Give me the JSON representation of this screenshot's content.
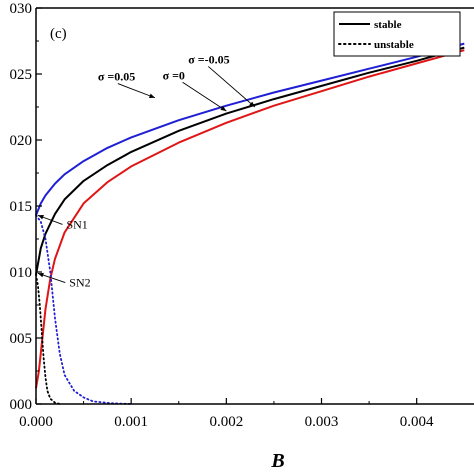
{
  "chart_data": {
    "type": "line",
    "panel_label": "(c)",
    "xlabel": "B",
    "ylabel": "",
    "xlim": [
      0,
      0.0045
    ],
    "ylim": [
      0,
      0.03
    ],
    "x_ticks": [
      0,
      0.001,
      0.002,
      0.003,
      0.004
    ],
    "x_tick_labels": [
      "0.000",
      "0.001",
      "0.002",
      "0.003",
      "0.004"
    ],
    "y_ticks": [
      0,
      0.005,
      0.01,
      0.015,
      0.02,
      0.025,
      0.03
    ],
    "y_tick_labels": [
      "000",
      "005",
      "010",
      "015",
      "020",
      "025",
      "030"
    ],
    "grid": false,
    "legend": {
      "position": "top-right",
      "entries": [
        {
          "label": "stable",
          "style": "solid"
        },
        {
          "label": "unstable",
          "style": "dotted"
        }
      ]
    },
    "series": [
      {
        "color": "#1f1fd6",
        "style": "solid",
        "x": [
          0,
          5e-05,
          0.0001,
          0.0002,
          0.0003,
          0.0005,
          0.00075,
          0.001,
          0.0015,
          0.002,
          0.0025,
          0.003,
          0.0035,
          0.004,
          0.0045
        ],
        "y": [
          0.0143,
          0.0152,
          0.0158,
          0.0167,
          0.0174,
          0.0184,
          0.0194,
          0.0202,
          0.0215,
          0.0226,
          0.0236,
          0.0245,
          0.0254,
          0.0263,
          0.0273
        ]
      },
      {
        "color": "#000000",
        "style": "solid",
        "x": [
          0,
          5e-05,
          0.0001,
          0.0002,
          0.0003,
          0.0005,
          0.00075,
          0.001,
          0.0015,
          0.002,
          0.0025,
          0.003,
          0.0035,
          0.004,
          0.0045
        ],
        "y": [
          0.0098,
          0.0118,
          0.0129,
          0.0144,
          0.0155,
          0.0169,
          0.0181,
          0.0191,
          0.0207,
          0.022,
          0.0231,
          0.0241,
          0.0251,
          0.026,
          0.027
        ]
      },
      {
        "color": "#e01515",
        "style": "solid",
        "x": [
          0,
          3e-05,
          6e-05,
          0.0001,
          0.00015,
          0.0002,
          0.0003,
          0.0005,
          0.00075,
          0.001,
          0.0015,
          0.002,
          0.0025,
          0.003,
          0.0035,
          0.004,
          0.0045
        ],
        "y": [
          0.0012,
          0.0025,
          0.0045,
          0.0072,
          0.0095,
          0.011,
          0.013,
          0.0152,
          0.0168,
          0.018,
          0.0198,
          0.0213,
          0.0226,
          0.0237,
          0.0248,
          0.0258,
          0.0268
        ]
      },
      {
        "color": "#1f1fd6",
        "style": "dotted",
        "x": [
          0,
          5e-05,
          0.0001,
          0.00015,
          0.0002,
          0.00025,
          0.0003,
          0.0004,
          0.0005,
          0.0006,
          0.0008,
          0.001
        ],
        "y": [
          0.0143,
          0.0138,
          0.0125,
          0.01,
          0.0065,
          0.0038,
          0.0022,
          0.001,
          0.0005,
          0.0002,
          5e-05,
          0.0
        ]
      },
      {
        "color": "#000000",
        "style": "dotted",
        "x": [
          0,
          2e-05,
          4e-05,
          6e-05,
          8e-05,
          0.0001,
          0.00012,
          0.00015,
          0.0002,
          0.00025
        ],
        "y": [
          0.0098,
          0.009,
          0.0075,
          0.0055,
          0.0035,
          0.002,
          0.001,
          0.0004,
          0.0001,
          0.0
        ]
      }
    ],
    "annotations": [
      {
        "text": "σ =0.05",
        "kind": "sigma",
        "x": 0.00125,
        "y": 0.0232,
        "tx": 0.00065,
        "ty": 0.0245
      },
      {
        "text": "σ =0",
        "kind": "sigma",
        "x": 0.002,
        "y": 0.0222,
        "tx": 0.00133,
        "ty": 0.0246
      },
      {
        "text": "σ =-0.05",
        "kind": "sigma",
        "x": 0.0023,
        "y": 0.0225,
        "tx": 0.0016,
        "ty": 0.0258
      },
      {
        "text": "SN1",
        "kind": "sn",
        "x": 2e-05,
        "y": 0.0143,
        "tx": 0.00032,
        "ty": 0.0133
      },
      {
        "text": "SN2",
        "kind": "sn",
        "x": 2e-05,
        "y": 0.0099,
        "tx": 0.00035,
        "ty": 0.0089
      }
    ]
  }
}
